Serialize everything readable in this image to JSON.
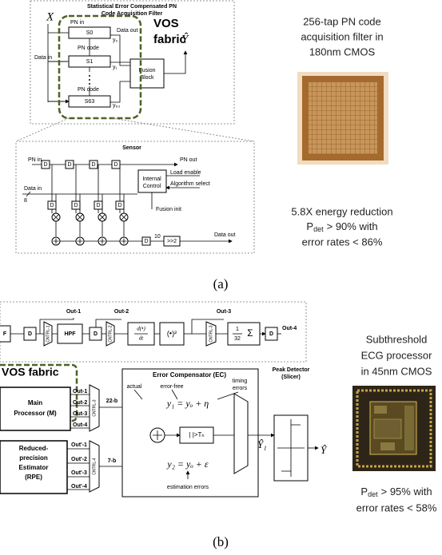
{
  "panel_a": {
    "filter": {
      "title_lines": [
        "Statistical Error Compensated PN",
        "Code Acquisition Filter"
      ],
      "input": "X",
      "data_in": "Data in",
      "pn_in": "PN in",
      "data_out": "Data out",
      "pn_code": "PN code",
      "stages": [
        {
          "name": "S0",
          "output": "y₀"
        },
        {
          "name": "S1",
          "output": "y₁"
        },
        {
          "name": "S63",
          "output": "y₆₃"
        }
      ],
      "fusion_lines": [
        "Fusion",
        "Block"
      ],
      "output": "Ŷ",
      "vos_lines": [
        "VOS",
        "fabric"
      ]
    },
    "sensor": {
      "title": "Sensor",
      "flop": "D",
      "pn_in": "PN in",
      "pn_out": "PN out",
      "load_enable": "Load enable",
      "algorithm_select": "Algorithm select",
      "control_lines": [
        "Internal",
        "Control"
      ],
      "data_in": "Data in",
      "data_width": "8",
      "fusion_init": "Fusion  init",
      "out_width": "10",
      "shift": ">>2",
      "data_out": "Data out"
    },
    "description_lines": [
      "256-tap PN code",
      "acquisition filter in",
      "180nm CMOS"
    ],
    "result_lines": [
      "5.8X energy reduction",
      {
        "symbol": "P",
        "subscript": "det",
        "text": "> 90% with"
      },
      "error rates < 86%"
    ],
    "label": "(a)"
  },
  "panel_b": {
    "chain": {
      "first_block": "F",
      "flop": "D",
      "hpf": "HPF",
      "derivative_top": "d(•)",
      "derivative_bottom": "dt",
      "square": "(•)²",
      "average_num": "1",
      "average_den": "32",
      "sum": "Σ",
      "outputs": [
        "Out-1",
        "Out-2",
        "Out-3",
        "Out-4"
      ],
      "controls": [
        "CNTRL-1",
        "CNTRL-2",
        "CNTRL-3"
      ]
    },
    "vos": "VOS fabric",
    "main_lines": [
      "Main",
      "Processor (M)"
    ],
    "main_outputs": [
      "Out-1",
      "Out-2",
      "Out-3",
      "Out-4"
    ],
    "main_control": "CNTRL-3",
    "main_width": "22-b",
    "rpe_lines": [
      "Reduced-",
      "precision",
      "Estimator",
      "(RPE)"
    ],
    "rpe_outputs": [
      "Out'-1",
      "Out'-2",
      "Out'-3",
      "Out'-4"
    ],
    "rpe_control": "CNTRL-4",
    "rpe_width": "7-b",
    "ec": {
      "title": "Error Compensator (EC)",
      "actual": "actual",
      "error_free": "error-free",
      "timing_lines": [
        "timing",
        "errors"
      ],
      "eq1": "y₁ = yₒ + η",
      "eq2": "y₂ = yₒ + ε",
      "threshold": "| |>Tₕ",
      "estimation": "estimation errors"
    },
    "ec_output": "Ŷ₁",
    "peak_lines": [
      "Peak Detector",
      "(Slicer)"
    ],
    "output": "Ŷ",
    "description_lines": [
      "Subthreshold",
      "ECG processor",
      "in 45nm CMOS"
    ],
    "result_lines": [
      {
        "symbol": "P",
        "subscript": "det",
        "text": "> 95% with"
      },
      "error rates < 58%"
    ],
    "label": "(b)"
  }
}
